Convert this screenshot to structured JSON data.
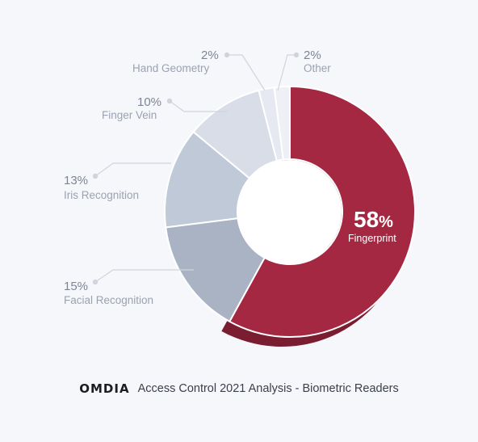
{
  "chart_data": {
    "type": "pie",
    "donut": true,
    "slices": [
      {
        "label": "Fingerprint",
        "value": 58,
        "pct_text": "58%",
        "color": "#a52842"
      },
      {
        "label": "Facial Recognition",
        "value": 15,
        "pct_text": "15%",
        "color": "#a9b3c4"
      },
      {
        "label": "Iris Recognition",
        "value": 13,
        "pct_text": "13%",
        "color": "#c0c9d8"
      },
      {
        "label": "Finger Vein",
        "value": 10,
        "pct_text": "10%",
        "color": "#d8dde8"
      },
      {
        "label": "Hand Geometry",
        "value": 2,
        "pct_text": "2%",
        "color": "#e6e9f1"
      },
      {
        "label": "Other",
        "value": 2,
        "pct_text": "2%",
        "color": "#eef0f5"
      }
    ],
    "highlight": {
      "value_text": "58",
      "pct_symbol": "%",
      "label": "Fingerprint"
    },
    "colors": {
      "shadow": "#7a1d31",
      "leader": "#d0d4dc",
      "background": "#f6f7fb"
    }
  },
  "footer": {
    "brand": "OMDIA",
    "caption": "Access Control 2021 Analysis - Biometric Readers"
  }
}
